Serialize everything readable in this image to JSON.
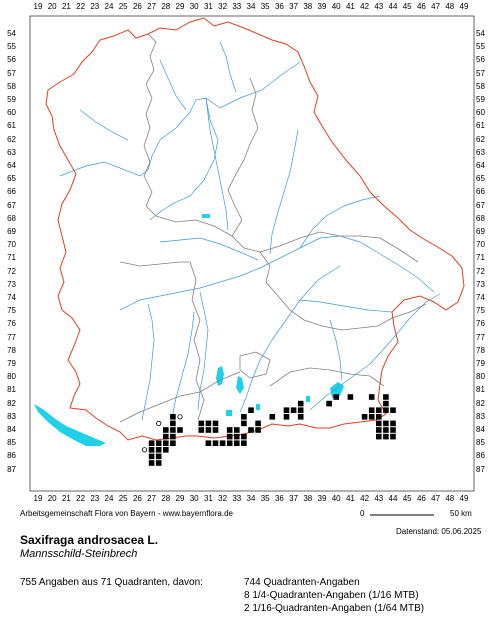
{
  "x_ticks": [
    "19",
    "20",
    "21",
    "22",
    "23",
    "24",
    "25",
    "26",
    "27",
    "28",
    "29",
    "30",
    "31",
    "32",
    "33",
    "34",
    "35",
    "36",
    "37",
    "38",
    "39",
    "40",
    "41",
    "42",
    "43",
    "44",
    "45",
    "46",
    "47",
    "48",
    "49"
  ],
  "y_ticks": [
    "54",
    "55",
    "56",
    "57",
    "58",
    "59",
    "60",
    "61",
    "62",
    "63",
    "64",
    "65",
    "66",
    "67",
    "68",
    "69",
    "70",
    "71",
    "72",
    "73",
    "74",
    "75",
    "76",
    "77",
    "78",
    "79",
    "80",
    "81",
    "82",
    "83",
    "84",
    "85",
    "86",
    "87"
  ],
  "credit": "Arbeitsgemeinschaft Flora von Bayern - www.bayernflora.de",
  "date_label": "Datenstand: 05.06.2025",
  "scale": {
    "start": "0",
    "end": "50 km"
  },
  "species_name": "Saxifraga androsacea L.",
  "common_name": "Mannsschild-Steinbrech",
  "summary": "755 Angaben aus 71 Quadranten, davon:",
  "stats": [
    "744 Quadranten-Angaben",
    "8 1/4-Quadranten-Angaben (1/16 MTB)",
    "2 1/16-Quadranten-Angaben (1/64 MTB)"
  ],
  "colors": {
    "border": "#e04020",
    "district": "#808080",
    "river": "#3a9ad9",
    "lake": "#20d0e8",
    "dot": "#000000"
  },
  "grid_cells": [
    [
      37.5,
      82
    ],
    [
      39.5,
      82
    ],
    [
      40,
      81.5
    ],
    [
      41,
      81.5
    ],
    [
      42.5,
      81.5
    ],
    [
      43.5,
      81.5
    ],
    [
      43.5,
      82
    ],
    [
      42.5,
      82.5
    ],
    [
      43,
      82.5
    ],
    [
      43.5,
      82.5
    ],
    [
      44,
      82.5
    ],
    [
      42,
      83
    ],
    [
      42.5,
      83
    ],
    [
      43,
      83
    ],
    [
      43.5,
      83.5
    ],
    [
      44,
      83.5
    ],
    [
      43,
      83.5
    ],
    [
      43,
      84
    ],
    [
      43.5,
      84
    ],
    [
      44,
      84
    ],
    [
      43,
      84.5
    ],
    [
      43.5,
      84.5
    ],
    [
      44,
      84.5
    ],
    [
      36.5,
      82.5
    ],
    [
      37,
      82.5
    ],
    [
      37.5,
      82.5
    ],
    [
      36.5,
      83
    ],
    [
      37.5,
      83
    ],
    [
      35.5,
      83
    ],
    [
      34,
      82.5
    ],
    [
      33.5,
      83
    ],
    [
      33.5,
      83.5
    ],
    [
      34.5,
      83.5
    ],
    [
      34,
      84
    ],
    [
      34.5,
      84
    ],
    [
      33,
      84.5
    ],
    [
      32.5,
      84.5
    ],
    [
      33.5,
      84.5
    ],
    [
      31,
      85
    ],
    [
      31.5,
      85
    ],
    [
      32,
      85
    ],
    [
      32.5,
      85
    ],
    [
      33,
      85
    ],
    [
      33.5,
      85
    ],
    [
      30.5,
      83.5
    ],
    [
      31,
      83.5
    ],
    [
      31.5,
      83.5
    ],
    [
      30.5,
      84
    ],
    [
      31,
      84
    ],
    [
      31.5,
      84
    ],
    [
      32.5,
      84
    ],
    [
      33,
      84
    ],
    [
      29,
      84
    ],
    [
      28.5,
      84
    ],
    [
      28,
      84
    ],
    [
      28,
      84.5
    ],
    [
      28.5,
      84.5
    ],
    [
      28,
      85
    ],
    [
      28.5,
      85
    ],
    [
      27.5,
      85
    ],
    [
      27,
      85
    ],
    [
      27,
      85.5
    ],
    [
      27.5,
      85.5
    ],
    [
      28,
      85.5
    ],
    [
      27,
      86
    ],
    [
      27.5,
      86
    ],
    [
      27,
      86.5
    ],
    [
      27.5,
      86.5
    ],
    [
      28.5,
      83.5
    ],
    [
      28.5,
      83
    ]
  ],
  "hollow_cells": [
    [
      27.5,
      83.5
    ],
    [
      26.5,
      85.5
    ],
    [
      29,
      83
    ]
  ]
}
